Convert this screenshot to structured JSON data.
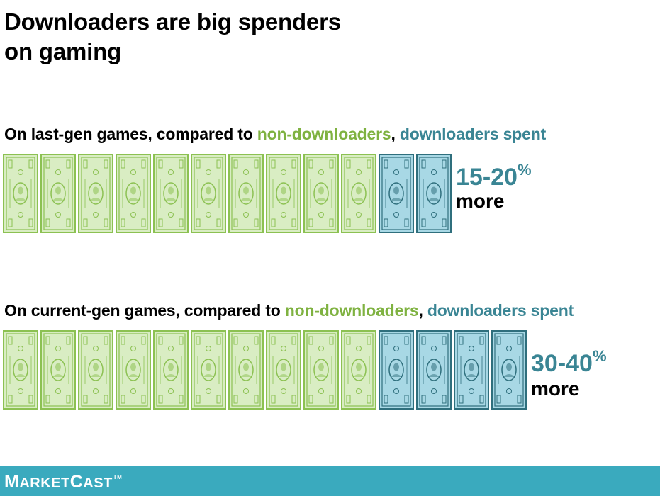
{
  "title_line1": "Downloaders are big spenders",
  "title_line2": "on gaming",
  "colors": {
    "green": "#7fb241",
    "teal": "#3a8594",
    "bill_green_fill": "#d9edc3",
    "bill_green_line": "#8cc152",
    "bill_blue_fill": "#a8d8e5",
    "bill_blue_line": "#2f6f7d",
    "footer": "#3aaabe"
  },
  "rows": [
    {
      "caption_pre": "On last-gen games, compared to ",
      "caption_non": "non-downloaders",
      "caption_comma": ", ",
      "caption_dl": "downloaders spent",
      "green_bills": 10,
      "blue_bills": 2,
      "pct_value": "15-20",
      "pct_symbol": "%",
      "more": "more"
    },
    {
      "caption_pre": "On current-gen games, compared to ",
      "caption_non": "non-downloaders",
      "caption_comma": ", ",
      "caption_dl": "downloaders spent",
      "green_bills": 10,
      "blue_bills": 4,
      "pct_value": "30-40",
      "pct_symbol": "%",
      "more": "more"
    }
  ],
  "chart_data": [
    {
      "type": "bar",
      "title": "On last-gen games, compared to non-downloaders, downloaders spent",
      "categories": [
        "non-downloaders",
        "downloaders"
      ],
      "values": [
        10,
        12
      ],
      "label": "15-20% more"
    },
    {
      "type": "bar",
      "title": "On current-gen games, compared to non-downloaders, downloaders spent",
      "categories": [
        "non-downloaders",
        "downloaders"
      ],
      "values": [
        10,
        14
      ],
      "label": "30-40% more"
    }
  ],
  "footer": {
    "logo_first": "M",
    "logo_mid": "ARKET",
    "logo_second": "C",
    "logo_end": "AST",
    "logo_tm": "TM"
  }
}
